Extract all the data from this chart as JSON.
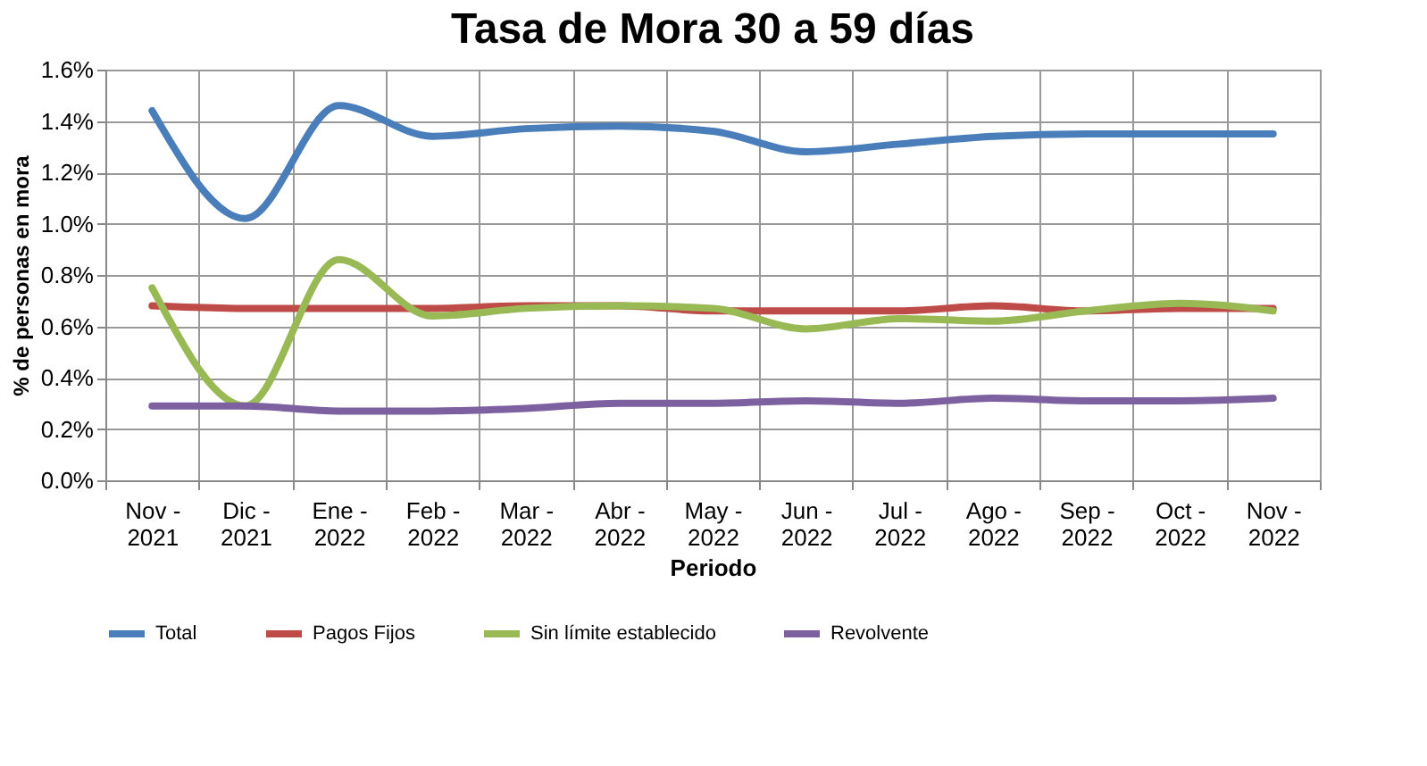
{
  "chart_data": {
    "type": "line",
    "title": "Tasa de Mora 30 a 59 días",
    "xlabel": "Periodo",
    "ylabel": "% de personas en mora",
    "categories": [
      "Nov - 2021",
      "Dic - 2021",
      "Ene - 2022",
      "Feb - 2022",
      "Mar - 2022",
      "Abr - 2022",
      "May - 2022",
      "Jun - 2022",
      "Jul - 2022",
      "Ago - 2022",
      "Sep - 2022",
      "Oct - 2022",
      "Nov - 2022"
    ],
    "series": [
      {
        "name": "Total",
        "color": "#4a7ebb",
        "values": [
          1.44,
          1.02,
          1.46,
          1.34,
          1.37,
          1.38,
          1.36,
          1.28,
          1.31,
          1.34,
          1.35,
          1.35,
          1.35
        ]
      },
      {
        "name": "Pagos Fijos",
        "color": "#be4b48",
        "values": [
          0.68,
          0.67,
          0.67,
          0.67,
          0.68,
          0.68,
          0.66,
          0.66,
          0.66,
          0.68,
          0.66,
          0.67,
          0.67
        ]
      },
      {
        "name": "Sin límite establecido",
        "color": "#98b954",
        "values": [
          0.75,
          0.29,
          0.86,
          0.64,
          0.67,
          0.68,
          0.67,
          0.59,
          0.63,
          0.62,
          0.66,
          0.69,
          0.66
        ]
      },
      {
        "name": "Revolvente",
        "color": "#7d60a0",
        "values": [
          0.29,
          0.29,
          0.27,
          0.27,
          0.28,
          0.3,
          0.3,
          0.31,
          0.3,
          0.32,
          0.31,
          0.31,
          0.32
        ]
      }
    ],
    "ylim": [
      0,
      1.6
    ],
    "yticks": [
      {
        "value": 0,
        "label": "0.0%"
      },
      {
        "value": 0.2,
        "label": "0.2%"
      },
      {
        "value": 0.4,
        "label": "0.4%"
      },
      {
        "value": 0.6,
        "label": "0.6%"
      },
      {
        "value": 0.8,
        "label": "0.8%"
      },
      {
        "value": 1.0,
        "label": "1.0%"
      },
      {
        "value": 1.2,
        "label": "1.2%"
      },
      {
        "value": 1.4,
        "label": "1.4%"
      },
      {
        "value": 1.6,
        "label": "1.6%"
      }
    ],
    "grid": true,
    "legend": "bottom",
    "marker": "none",
    "line_style": "solid"
  }
}
